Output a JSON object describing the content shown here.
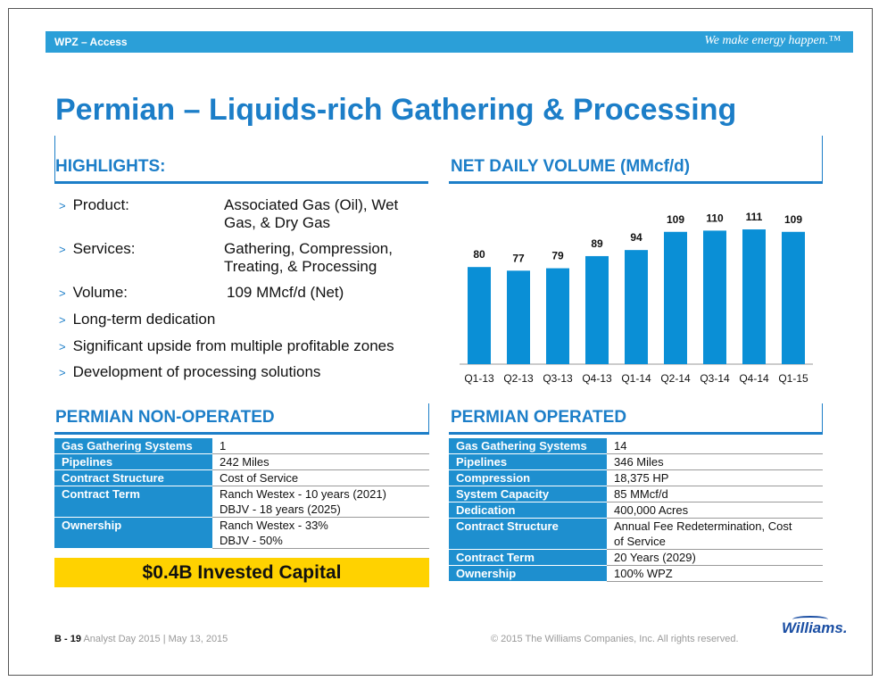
{
  "header": {
    "left": "WPZ – Access",
    "tagline": "We make energy happen.™"
  },
  "title": "Permian – Liquids-rich Gathering & Processing",
  "highlights": {
    "heading": "HIGHLIGHTS:",
    "product_label": "Product:",
    "product_value_1": "Associated Gas (Oil), Wet",
    "product_value_2": "Gas, & Dry Gas",
    "services_label": "Services:",
    "services_value_1": "Gathering, Compression,",
    "services_value_2": "Treating, & Processing",
    "volume_label": "Volume:",
    "volume_value": "109 MMcf/d (Net)",
    "bullet_4": "Long-term dedication",
    "bullet_5": "Significant upside from multiple profitable zones",
    "bullet_6": "Development of processing solutions"
  },
  "chart_section": {
    "heading": "NET DAILY VOLUME (MMcf/d)"
  },
  "chart_data": {
    "type": "bar",
    "title": "NET DAILY VOLUME (MMcf/d)",
    "categories": [
      "Q1-13",
      "Q2-13",
      "Q3-13",
      "Q4-13",
      "Q1-14",
      "Q2-14",
      "Q3-14",
      "Q4-14",
      "Q1-15"
    ],
    "values": [
      80,
      77,
      79,
      89,
      94,
      109,
      110,
      111,
      109
    ],
    "ylim": [
      0,
      125
    ],
    "grid": false,
    "color": "#0a8fd6"
  },
  "non_operated": {
    "heading": "PERMIAN NON-OPERATED",
    "rows": [
      {
        "k": "Gas Gathering Systems",
        "v1": "1",
        "v2": ""
      },
      {
        "k": "Pipelines",
        "v1": "242 Miles",
        "v2": ""
      },
      {
        "k": "Contract Structure",
        "v1": "Cost of Service",
        "v2": ""
      },
      {
        "k": "Contract Term",
        "v1": "Ranch Westex - 10 years (2021)",
        "v2": "DBJV - 18 years (2025)"
      },
      {
        "k": "Ownership",
        "v1": "Ranch Westex - 33%",
        "v2": "DBJV - 50%"
      }
    ],
    "invested": "$0.4B Invested Capital"
  },
  "operated": {
    "heading": "PERMIAN OPERATED",
    "rows": [
      {
        "k": "Gas Gathering Systems",
        "v1": "14",
        "v2": ""
      },
      {
        "k": "Pipelines",
        "v1": "346 Miles",
        "v2": ""
      },
      {
        "k": "Compression",
        "v1": "18,375 HP",
        "v2": ""
      },
      {
        "k": "System Capacity",
        "v1": "85 MMcf/d",
        "v2": ""
      },
      {
        "k": "Dedication",
        "v1": "400,000 Acres",
        "v2": ""
      },
      {
        "k": "Contract Structure",
        "v1": "Annual Fee Redetermination, Cost",
        "v2": "of Service"
      },
      {
        "k": "Contract Term",
        "v1": "20 Years (2029)",
        "v2": ""
      },
      {
        "k": "Ownership",
        "v1": "100% WPZ",
        "v2": ""
      }
    ]
  },
  "footer": {
    "page_prefix": "B -",
    "page_number": "19",
    "event": "Analyst Day 2015",
    "separator": "|",
    "date": "May 13, 2015",
    "copyright": "© 2015 The Williams Companies, Inc. All rights reserved.",
    "logo": "Williams."
  }
}
